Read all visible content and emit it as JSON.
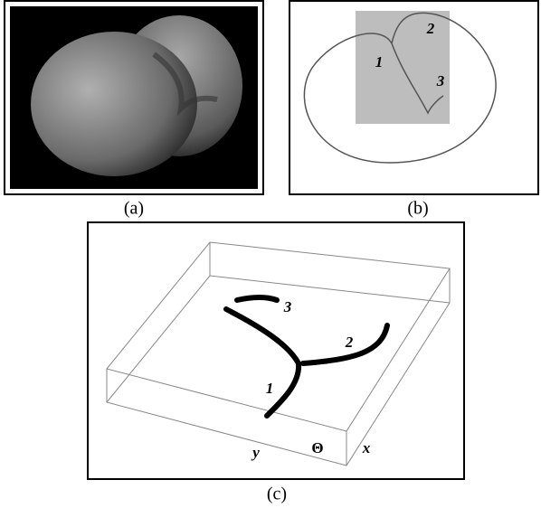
{
  "panels": [
    {
      "caption": "(a)"
    },
    {
      "caption": "(b)",
      "labels": [
        "1",
        "2",
        "3"
      ]
    },
    {
      "caption": "(c)",
      "labels": [
        "1",
        "2",
        "3"
      ],
      "axes": {
        "y": "y",
        "theta": "Θ",
        "x": "x"
      }
    }
  ]
}
